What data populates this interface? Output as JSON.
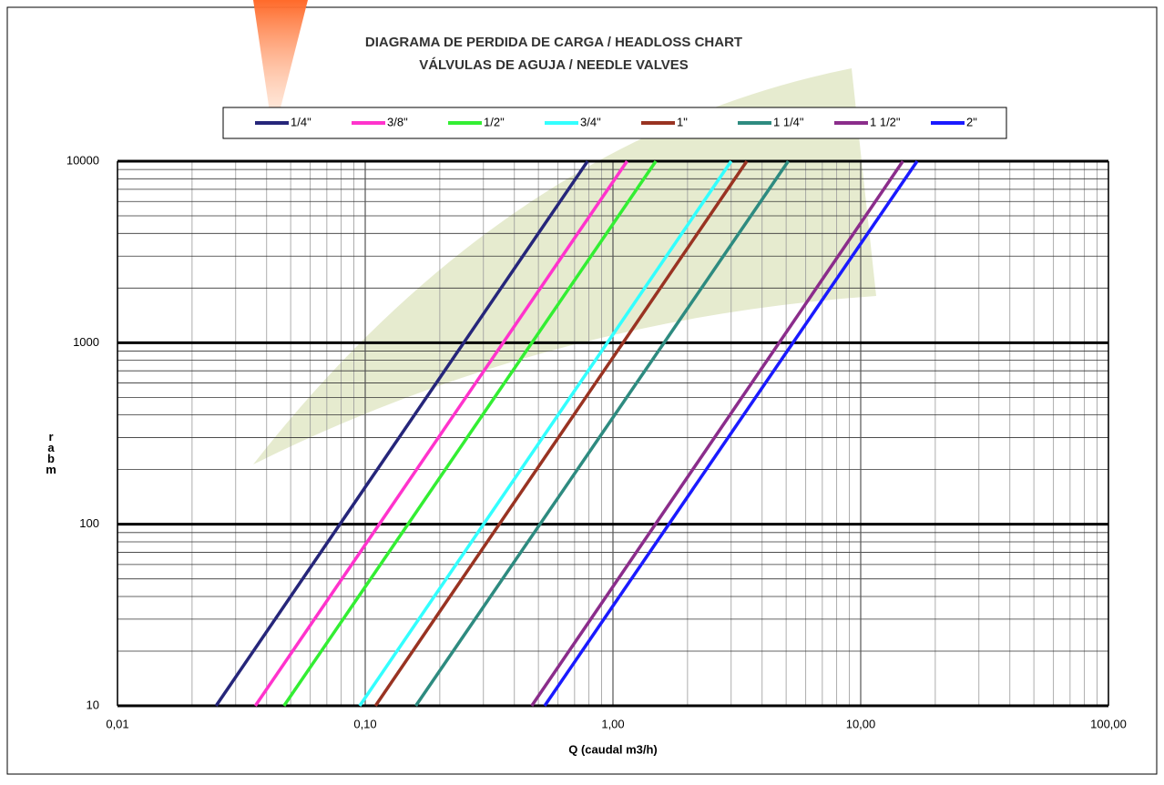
{
  "chart_data": {
    "type": "line",
    "title": "DIAGRAMA DE PERDIDA DE CARGA / HEADLOSS CHART",
    "subtitle": "VÁLVULAS DE AGUJA / NEEDLE VALVES",
    "x_label": "Q (caudal m3/h)",
    "y_label": "rabm",
    "x_log": true,
    "y_log": true,
    "grid": true,
    "xlim": [
      0.01,
      100
    ],
    "ylim": [
      10,
      10000
    ],
    "xticks": [
      {
        "value": 0.01,
        "label": "0,01"
      },
      {
        "value": 0.1,
        "label": "0,10"
      },
      {
        "value": 1,
        "label": "1,00"
      },
      {
        "value": 10,
        "label": "10,00"
      },
      {
        "value": 100,
        "label": "100,00"
      }
    ],
    "yticks": [
      10,
      100,
      1000,
      10000
    ],
    "x_minor_ticks": [
      0.02,
      0.03,
      0.04,
      0.05,
      0.06,
      0.07,
      0.08,
      0.09,
      0.2,
      0.3,
      0.4,
      0.5,
      0.6,
      0.7,
      0.8,
      0.9,
      2,
      3,
      4,
      5,
      6,
      7,
      8,
      9,
      20,
      30,
      40,
      50,
      60,
      70,
      80,
      90
    ],
    "y_minor_ticks": [
      20,
      30,
      40,
      50,
      60,
      70,
      80,
      90,
      200,
      300,
      400,
      500,
      600,
      700,
      800,
      900,
      2000,
      3000,
      4000,
      5000,
      6000,
      7000,
      8000,
      9000
    ],
    "legend": "top",
    "series": [
      {
        "name": "1/4\"",
        "color": "#26267a",
        "x": [
          0.025,
          0.79
        ],
        "values": [
          10,
          10000
        ]
      },
      {
        "name": "3/8\"",
        "color": "#ff33cc",
        "x": [
          0.036,
          1.14
        ],
        "values": [
          10,
          10000
        ]
      },
      {
        "name": "1/2\"",
        "color": "#33ee33",
        "x": [
          0.047,
          1.49
        ],
        "values": [
          10,
          10000
        ]
      },
      {
        "name": "3/4\"",
        "color": "#33ffff",
        "x": [
          0.095,
          3.0
        ],
        "values": [
          10,
          10000
        ]
      },
      {
        "name": "1\"",
        "color": "#993322",
        "x": [
          0.11,
          3.47
        ],
        "values": [
          10,
          10000
        ]
      },
      {
        "name": "1 1/4\"",
        "color": "#2e8b80",
        "x": [
          0.16,
          5.1
        ],
        "values": [
          10,
          10000
        ]
      },
      {
        "name": "1 1/2\"",
        "color": "#8b2d8b",
        "x": [
          0.47,
          14.8
        ],
        "values": [
          10,
          10000
        ]
      },
      {
        "name": "2\"",
        "color": "#1a1aff",
        "x": [
          0.53,
          16.9
        ],
        "values": [
          10,
          10000
        ]
      }
    ]
  }
}
